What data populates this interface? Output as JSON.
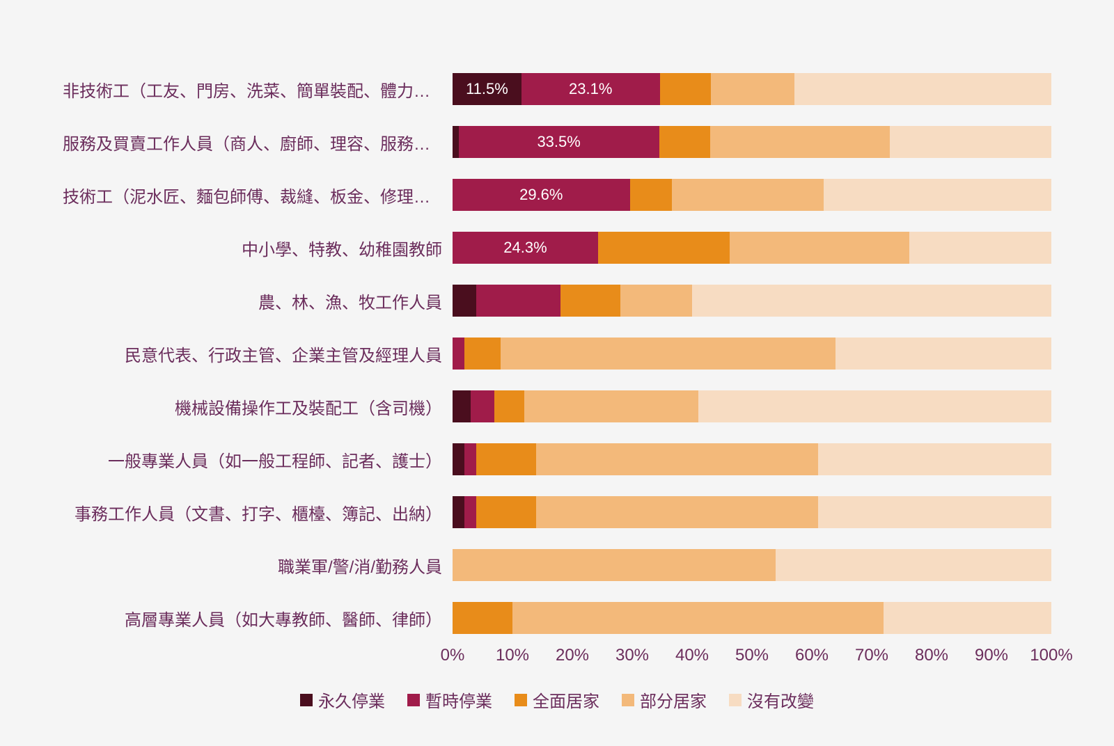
{
  "chart": {
    "type": "stacked-horizontal-bar",
    "background_color": "#f5f5f5",
    "label_color": "#6b2d5c",
    "label_fontsize": 24,
    "bar_label_color": "#ffffff",
    "bar_label_fontsize": 22,
    "xlim": [
      0,
      100
    ],
    "xtick_step": 10,
    "xticks": [
      "0%",
      "10%",
      "20%",
      "30%",
      "40%",
      "50%",
      "60%",
      "70%",
      "80%",
      "90%",
      "100%"
    ],
    "series": [
      {
        "key": "permanent_close",
        "label": "永久停業",
        "color": "#4a0e1e"
      },
      {
        "key": "temp_close",
        "label": "暫時停業",
        "color": "#a01c4a"
      },
      {
        "key": "full_wfh",
        "label": "全面居家",
        "color": "#e88c1a"
      },
      {
        "key": "partial_wfh",
        "label": "部分居家",
        "color": "#f3b97a"
      },
      {
        "key": "no_change",
        "label": "沒有改變",
        "color": "#f7dcc2"
      }
    ],
    "categories": [
      {
        "label": "非技術工（工友、門房、洗菜、簡單裝配、體力工）",
        "values": {
          "permanent_close": 11.5,
          "temp_close": 23.1,
          "full_wfh": 8.5,
          "partial_wfh": 14.0,
          "no_change": 42.9
        },
        "show_labels": [
          {
            "key": "permanent_close",
            "text": "11.5%"
          },
          {
            "key": "temp_close",
            "text": "23.1%"
          }
        ]
      },
      {
        "label": "服務及買賣工作人員（商人、廚師、理容、服務生、保母、警衛、…",
        "values": {
          "permanent_close": 1.0,
          "temp_close": 33.5,
          "full_wfh": 8.5,
          "partial_wfh": 30.0,
          "no_change": 27.0
        },
        "show_labels": [
          {
            "key": "temp_close",
            "text": "33.5%"
          }
        ]
      },
      {
        "label": "技術工（泥水匠、麵包師傅、裁縫、板金、修理電器）",
        "values": {
          "permanent_close": 0.0,
          "temp_close": 29.6,
          "full_wfh": 7.0,
          "partial_wfh": 25.4,
          "no_change": 38.0
        },
        "show_labels": [
          {
            "key": "temp_close",
            "text": "29.6%"
          }
        ]
      },
      {
        "label": "中小學、特教、幼稚園教師",
        "values": {
          "permanent_close": 0.0,
          "temp_close": 24.3,
          "full_wfh": 22.0,
          "partial_wfh": 30.0,
          "no_change": 23.7
        },
        "show_labels": [
          {
            "key": "temp_close",
            "text": "24.3%"
          }
        ]
      },
      {
        "label": "農、林、漁、牧工作人員",
        "values": {
          "permanent_close": 4.0,
          "temp_close": 14.0,
          "full_wfh": 10.0,
          "partial_wfh": 12.0,
          "no_change": 60.0
        },
        "show_labels": []
      },
      {
        "label": "民意代表、行政主管、企業主管及經理人員",
        "values": {
          "permanent_close": 0.0,
          "temp_close": 2.0,
          "full_wfh": 6.0,
          "partial_wfh": 56.0,
          "no_change": 36.0
        },
        "show_labels": []
      },
      {
        "label": "機械設備操作工及裝配工（含司機）",
        "values": {
          "permanent_close": 3.0,
          "temp_close": 4.0,
          "full_wfh": 5.0,
          "partial_wfh": 29.0,
          "no_change": 59.0
        },
        "show_labels": []
      },
      {
        "label": "一般專業人員（如一般工程師、記者、護士）",
        "values": {
          "permanent_close": 2.0,
          "temp_close": 2.0,
          "full_wfh": 10.0,
          "partial_wfh": 47.0,
          "no_change": 39.0
        },
        "show_labels": []
      },
      {
        "label": "事務工作人員（文書、打字、櫃檯、簿記、出納）",
        "values": {
          "permanent_close": 2.0,
          "temp_close": 2.0,
          "full_wfh": 10.0,
          "partial_wfh": 47.0,
          "no_change": 39.0
        },
        "show_labels": []
      },
      {
        "label": "職業軍/警/消/勤務人員",
        "values": {
          "permanent_close": 0.0,
          "temp_close": 0.0,
          "full_wfh": 0.0,
          "partial_wfh": 54.0,
          "no_change": 46.0
        },
        "show_labels": []
      },
      {
        "label": "高層專業人員（如大專教師、醫師、律師）",
        "values": {
          "permanent_close": 0.0,
          "temp_close": 0.0,
          "full_wfh": 10.0,
          "partial_wfh": 62.0,
          "no_change": 28.0
        },
        "show_labels": []
      }
    ]
  }
}
